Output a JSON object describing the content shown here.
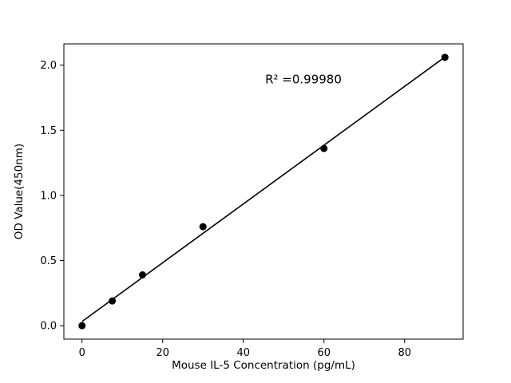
{
  "chart_data": {
    "type": "scatter",
    "title": "",
    "xlabel": "Mouse IL-5 Concentration (pg/mL)",
    "ylabel": "OD Value(450nm)",
    "x": [
      0,
      7.5,
      15,
      30,
      60,
      90
    ],
    "y": [
      0.0,
      0.19,
      0.39,
      0.76,
      1.36,
      2.06
    ],
    "fit_line": true,
    "annotation": {
      "text": "R² =0.99980",
      "fx": 0.6,
      "fy": 0.12
    },
    "xlim": [
      -4.5,
      94.5
    ],
    "ylim": [
      -0.103,
      2.163
    ],
    "xticks": [
      {
        "value": 0,
        "label": "0"
      },
      {
        "value": 20,
        "label": "20"
      },
      {
        "value": 40,
        "label": "40"
      },
      {
        "value": 60,
        "label": "60"
      },
      {
        "value": 80,
        "label": "80"
      }
    ],
    "yticks": [
      {
        "value": 0.0,
        "label": "0.0"
      },
      {
        "value": 0.5,
        "label": "0.5"
      },
      {
        "value": 1.0,
        "label": "1.0"
      },
      {
        "value": 1.5,
        "label": "1.5"
      },
      {
        "value": 2.0,
        "label": "2.0"
      }
    ],
    "legend": null,
    "grid": false,
    "point_color": "#000000",
    "line_color": "#000000",
    "background": "#ffffff"
  }
}
